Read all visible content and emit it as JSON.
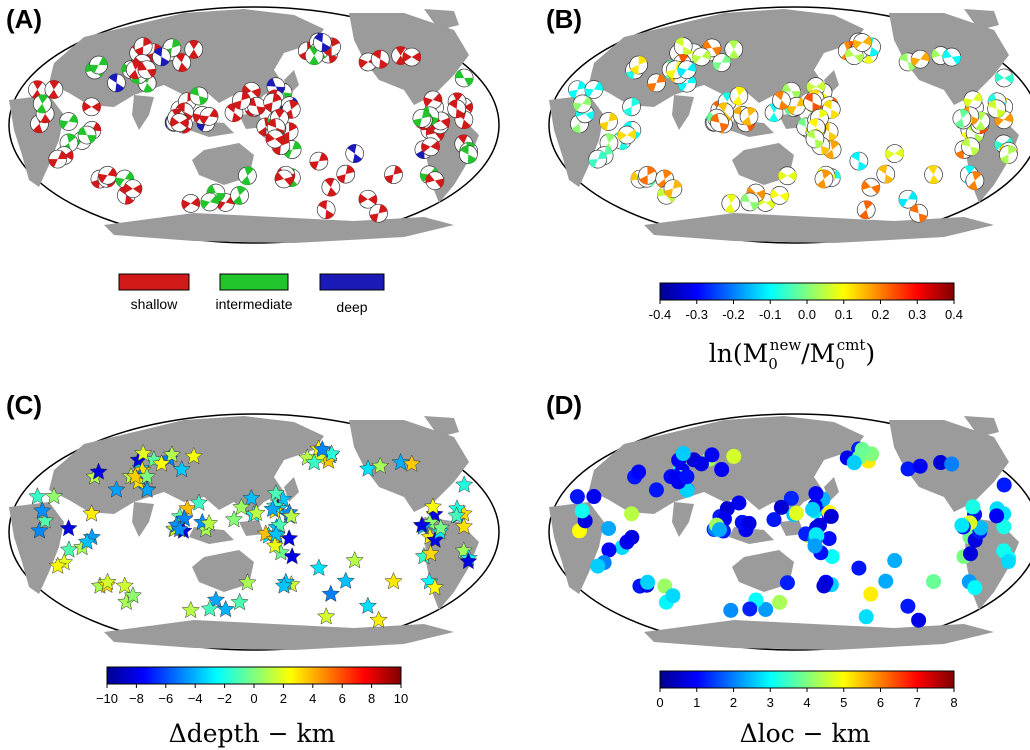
{
  "panels": {
    "a": {
      "label": "(A)"
    },
    "b": {
      "label": "(B)"
    },
    "c": {
      "label": "(C)"
    },
    "d": {
      "label": "(D)"
    }
  },
  "colors": {
    "shallow": "#d11919",
    "intermediate": "#22c42b",
    "deep": "#1a1ab8",
    "land": "#9b9b9b",
    "ocean": "#ffffff"
  },
  "chart_data": [
    {
      "type": "scatter",
      "panel": "(A)",
      "legend": [
        {
          "name": "shallow",
          "color": "#d11919"
        },
        {
          "name": "intermediate",
          "color": "#22c42b"
        },
        {
          "name": "deep",
          "color": "#1a1ab8"
        }
      ],
      "note": "focal mechanism beachballs colored by depth class"
    },
    {
      "type": "scatter",
      "panel": "(B)",
      "colorbar": {
        "ticks": [
          "-0.4",
          "-0.3",
          "-0.2",
          "-0.1",
          "0.0",
          "0.1",
          "0.2",
          "0.3",
          "0.4"
        ],
        "range": [
          -0.4,
          0.4
        ],
        "colormap": "jet"
      },
      "label_parts": {
        "ln": "ln(M",
        "sub": "0",
        "sup_new": "new",
        "slash": "/M",
        "sup_cmt": "cmt",
        "close": ")"
      }
    },
    {
      "type": "scatter",
      "panel": "(C)",
      "marker": "star",
      "colorbar": {
        "ticks": [
          "−10",
          "−8",
          "−6",
          "−4",
          "−2",
          "0",
          "2",
          "4",
          "6",
          "8",
          "10"
        ],
        "range": [
          -10,
          10
        ],
        "colormap": "jet"
      },
      "label": "Δdepth − km"
    },
    {
      "type": "scatter",
      "panel": "(D)",
      "marker": "circle",
      "colorbar": {
        "ticks": [
          "0",
          "1",
          "2",
          "3",
          "4",
          "5",
          "6",
          "7",
          "8"
        ],
        "range": [
          0,
          8
        ],
        "colormap": "jet"
      },
      "label": "Δloc − km"
    }
  ]
}
